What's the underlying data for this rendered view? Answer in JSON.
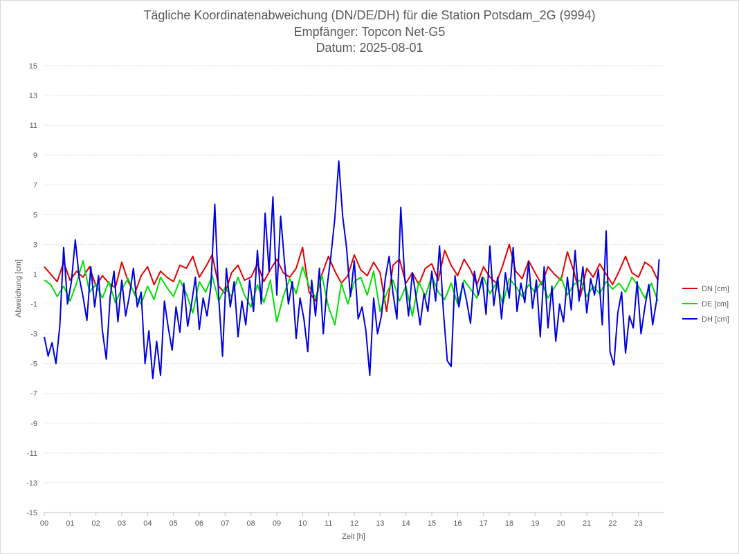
{
  "chart_data": {
    "type": "line",
    "title": [
      "Tägliche Koordinatenabweichung (DN/DE/DH) für die Station Potsdam_2G (9994)",
      "Empfänger: Topcon Net-G5",
      "Datum: 2025-08-01"
    ],
    "xlabel": "Zeit [h]",
    "ylabel": "Abweichung [cm]",
    "xlim": [
      0,
      24
    ],
    "ylim": [
      -15,
      15
    ],
    "xticks": [
      "00",
      "01",
      "02",
      "03",
      "04",
      "05",
      "06",
      "07",
      "08",
      "09",
      "10",
      "11",
      "12",
      "13",
      "14",
      "15",
      "16",
      "17",
      "18",
      "19",
      "20",
      "21",
      "22",
      "23"
    ],
    "yticks": [
      15,
      13,
      11,
      9,
      7,
      5,
      3,
      1,
      -1,
      -3,
      -5,
      -7,
      -9,
      -11,
      -13,
      -15
    ],
    "grid": true,
    "legend_position": "right",
    "series": [
      {
        "name": "DN [cm]",
        "color": "#e00000",
        "x": [
          0.0,
          0.25,
          0.5,
          0.75,
          1.0,
          1.25,
          1.5,
          1.75,
          2.0,
          2.25,
          2.5,
          2.75,
          3.0,
          3.25,
          3.5,
          3.75,
          4.0,
          4.25,
          4.5,
          4.75,
          5.0,
          5.25,
          5.5,
          5.75,
          6.0,
          6.25,
          6.5,
          6.75,
          7.0,
          7.25,
          7.5,
          7.75,
          8.0,
          8.25,
          8.5,
          8.75,
          9.0,
          9.25,
          9.5,
          9.75,
          10.0,
          10.25,
          10.5,
          10.75,
          11.0,
          11.25,
          11.5,
          11.75,
          12.0,
          12.25,
          12.5,
          12.75,
          13.0,
          13.25,
          13.5,
          13.75,
          14.0,
          14.25,
          14.5,
          14.75,
          15.0,
          15.25,
          15.5,
          15.75,
          16.0,
          16.25,
          16.5,
          16.75,
          17.0,
          17.25,
          17.5,
          17.75,
          18.0,
          18.25,
          18.5,
          18.75,
          19.0,
          19.25,
          19.5,
          19.75,
          20.0,
          20.25,
          20.5,
          20.75,
          21.0,
          21.25,
          21.5,
          21.75,
          22.0,
          22.25,
          22.5,
          22.75,
          23.0,
          23.25,
          23.5,
          23.75
        ],
        "values": [
          1.5,
          1.0,
          0.5,
          1.8,
          0.6,
          1.2,
          0.8,
          1.5,
          0.2,
          0.9,
          0.4,
          0.1,
          1.8,
          0.5,
          -0.3,
          0.9,
          1.5,
          0.3,
          1.2,
          0.8,
          0.5,
          1.6,
          1.4,
          2.2,
          0.8,
          1.5,
          2.3,
          0.2,
          -0.3,
          1.1,
          1.6,
          0.6,
          0.8,
          1.7,
          0.5,
          1.3,
          2.0,
          1.1,
          0.8,
          1.4,
          2.8,
          -0.2,
          -0.8,
          1.0,
          2.2,
          1.2,
          0.4,
          0.9,
          2.3,
          1.3,
          0.9,
          1.8,
          1.1,
          -1.5,
          1.6,
          2.0,
          0.4,
          1.1,
          0.3,
          1.4,
          1.7,
          0.6,
          2.6,
          1.6,
          0.9,
          2.0,
          1.3,
          0.3,
          1.5,
          0.8,
          0.4,
          1.6,
          3.0,
          1.2,
          0.7,
          1.9,
          1.1,
          0.3,
          1.5,
          1.0,
          0.6,
          2.5,
          1.2,
          -0.5,
          1.4,
          0.8,
          1.7,
          1.0,
          0.3,
          1.2,
          2.2,
          1.1,
          0.8,
          1.8,
          1.5,
          0.6
        ]
      },
      {
        "name": "DE [cm]",
        "color": "#00e000",
        "x": [
          0.0,
          0.25,
          0.5,
          0.75,
          1.0,
          1.25,
          1.5,
          1.75,
          2.0,
          2.25,
          2.5,
          2.75,
          3.0,
          3.25,
          3.5,
          3.75,
          4.0,
          4.25,
          4.5,
          4.75,
          5.0,
          5.25,
          5.5,
          5.75,
          6.0,
          6.25,
          6.5,
          6.75,
          7.0,
          7.25,
          7.5,
          7.75,
          8.0,
          8.25,
          8.5,
          8.75,
          9.0,
          9.25,
          9.5,
          9.75,
          10.0,
          10.25,
          10.5,
          10.75,
          11.0,
          11.25,
          11.5,
          11.75,
          12.0,
          12.25,
          12.5,
          12.75,
          13.0,
          13.25,
          13.5,
          13.75,
          14.0,
          14.25,
          14.5,
          14.75,
          15.0,
          15.25,
          15.5,
          15.75,
          16.0,
          16.25,
          16.5,
          16.75,
          17.0,
          17.25,
          17.5,
          17.75,
          18.0,
          18.25,
          18.5,
          18.75,
          19.0,
          19.25,
          19.5,
          19.75,
          20.0,
          20.25,
          20.5,
          20.75,
          21.0,
          21.25,
          21.5,
          21.75,
          22.0,
          22.25,
          22.5,
          22.75,
          23.0,
          23.25,
          23.5,
          23.75
        ],
        "values": [
          0.6,
          0.3,
          -0.5,
          0.2,
          -0.8,
          0.4,
          1.9,
          -0.2,
          0.3,
          -0.6,
          0.5,
          -0.9,
          0.0,
          0.7,
          -0.4,
          -1.0,
          0.2,
          -0.7,
          0.8,
          0.1,
          -0.5,
          0.6,
          -0.3,
          -1.6,
          0.5,
          -0.2,
          0.9,
          -0.8,
          0.1,
          -0.5,
          0.8,
          -0.4,
          -1.2,
          0.3,
          -0.9,
          0.6,
          -2.2,
          -0.5,
          0.7,
          -0.3,
          1.5,
          0.2,
          -0.6,
          0.9,
          -1.2,
          -2.4,
          0.4,
          -1.0,
          0.5,
          0.8,
          -0.4,
          1.2,
          -1.5,
          -0.3,
          0.6,
          -0.8,
          0.2,
          -1.8,
          0.5,
          -0.5,
          0.9,
          -0.2,
          -0.7,
          0.4,
          -1.0,
          0.6,
          0.0,
          -0.6,
          0.8,
          -0.3,
          0.4,
          -1.0,
          0.7,
          0.2,
          -0.5,
          0.3,
          -0.2,
          0.5,
          -0.6,
          0.1,
          0.8,
          -0.4,
          0.3,
          0.6,
          -0.5,
          0.2,
          -0.3,
          0.5,
          0.0,
          0.4,
          -0.2,
          0.8,
          0.2,
          -0.6,
          0.4,
          -0.8
        ]
      },
      {
        "name": "DH [cm]",
        "color": "#0000e0",
        "x": [
          0.0,
          0.15,
          0.3,
          0.45,
          0.6,
          0.75,
          0.9,
          1.05,
          1.2,
          1.35,
          1.5,
          1.65,
          1.8,
          1.95,
          2.1,
          2.25,
          2.4,
          2.55,
          2.7,
          2.85,
          3.0,
          3.15,
          3.3,
          3.45,
          3.6,
          3.75,
          3.9,
          4.05,
          4.2,
          4.35,
          4.5,
          4.65,
          4.8,
          4.95,
          5.1,
          5.25,
          5.4,
          5.55,
          5.7,
          5.85,
          6.0,
          6.15,
          6.3,
          6.45,
          6.6,
          6.75,
          6.9,
          7.05,
          7.2,
          7.35,
          7.5,
          7.65,
          7.8,
          7.95,
          8.1,
          8.25,
          8.4,
          8.55,
          8.7,
          8.85,
          9.0,
          9.15,
          9.3,
          9.45,
          9.6,
          9.75,
          9.9,
          10.05,
          10.2,
          10.35,
          10.5,
          10.65,
          10.8,
          10.95,
          11.1,
          11.25,
          11.4,
          11.55,
          11.7,
          11.85,
          12.0,
          12.15,
          12.3,
          12.45,
          12.6,
          12.75,
          12.9,
          13.05,
          13.2,
          13.35,
          13.5,
          13.65,
          13.8,
          13.95,
          14.1,
          14.25,
          14.4,
          14.55,
          14.7,
          14.85,
          15.0,
          15.15,
          15.3,
          15.45,
          15.6,
          15.75,
          15.9,
          16.05,
          16.2,
          16.35,
          16.5,
          16.65,
          16.8,
          16.95,
          17.1,
          17.25,
          17.4,
          17.55,
          17.7,
          17.85,
          18.0,
          18.15,
          18.3,
          18.45,
          18.6,
          18.75,
          18.9,
          19.05,
          19.2,
          19.35,
          19.5,
          19.65,
          19.8,
          19.95,
          20.1,
          20.25,
          20.4,
          20.55,
          20.7,
          20.85,
          21.0,
          21.15,
          21.3,
          21.45,
          21.6,
          21.75,
          21.9,
          22.05,
          22.2,
          22.35,
          22.5,
          22.65,
          22.8,
          22.95,
          23.1,
          23.25,
          23.4,
          23.55,
          23.7,
          23.8
        ],
        "values": [
          -3.2,
          -4.5,
          -3.6,
          -5.0,
          -2.5,
          2.8,
          -1.0,
          0.5,
          3.3,
          0.8,
          -0.5,
          -2.1,
          1.5,
          -1.2,
          0.9,
          -2.8,
          -4.7,
          -0.5,
          1.2,
          -2.2,
          0.6,
          -1.8,
          -0.4,
          1.4,
          -1.2,
          -0.2,
          -5.0,
          -2.8,
          -6.0,
          -3.5,
          -5.8,
          -0.8,
          -2.6,
          -4.1,
          -1.2,
          -2.9,
          0.4,
          -2.5,
          -1.0,
          0.8,
          -2.7,
          -0.6,
          -1.8,
          0.2,
          5.7,
          -0.5,
          -4.5,
          1.4,
          -1.2,
          0.5,
          -3.2,
          -0.8,
          -2.4,
          0.6,
          -1.5,
          2.6,
          -1.0,
          5.1,
          1.2,
          6.2,
          -0.4,
          4.9,
          1.8,
          -1.0,
          0.5,
          -3.3,
          -0.6,
          -2.0,
          -4.2,
          0.6,
          -1.8,
          1.4,
          -3.0,
          0.2,
          2.3,
          4.8,
          8.6,
          4.9,
          2.8,
          -0.5,
          1.9,
          -2.0,
          -1.2,
          -2.8,
          -5.8,
          -0.6,
          -3.0,
          -1.8,
          0.7,
          2.2,
          -0.3,
          -2.0,
          5.5,
          0.8,
          -1.8,
          1.1,
          -0.6,
          -2.4,
          -0.3,
          -1.5,
          1.2,
          -0.8,
          2.9,
          -1.5,
          -4.8,
          -5.2,
          0.9,
          -1.2,
          0.4,
          -0.8,
          -2.3,
          1.2,
          -0.4,
          0.8,
          -1.7,
          2.9,
          -1.1,
          0.8,
          -2.0,
          1.1,
          -0.6,
          2.8,
          -1.5,
          0.4,
          -0.9,
          1.8,
          -1.3,
          0.6,
          -3.2,
          1.5,
          -2.6,
          0.2,
          -3.5,
          -1.0,
          -2.2,
          0.8,
          -1.4,
          2.6,
          -0.8,
          1.5,
          -1.6,
          0.7,
          -0.4,
          1.3,
          -2.4,
          3.9,
          -4.2,
          -5.1,
          -1.6,
          -0.2,
          -4.3,
          -1.8,
          -2.6,
          0.5,
          -3.0,
          -1.2,
          0.3,
          -2.4,
          -0.8,
          2.0
        ]
      }
    ]
  }
}
